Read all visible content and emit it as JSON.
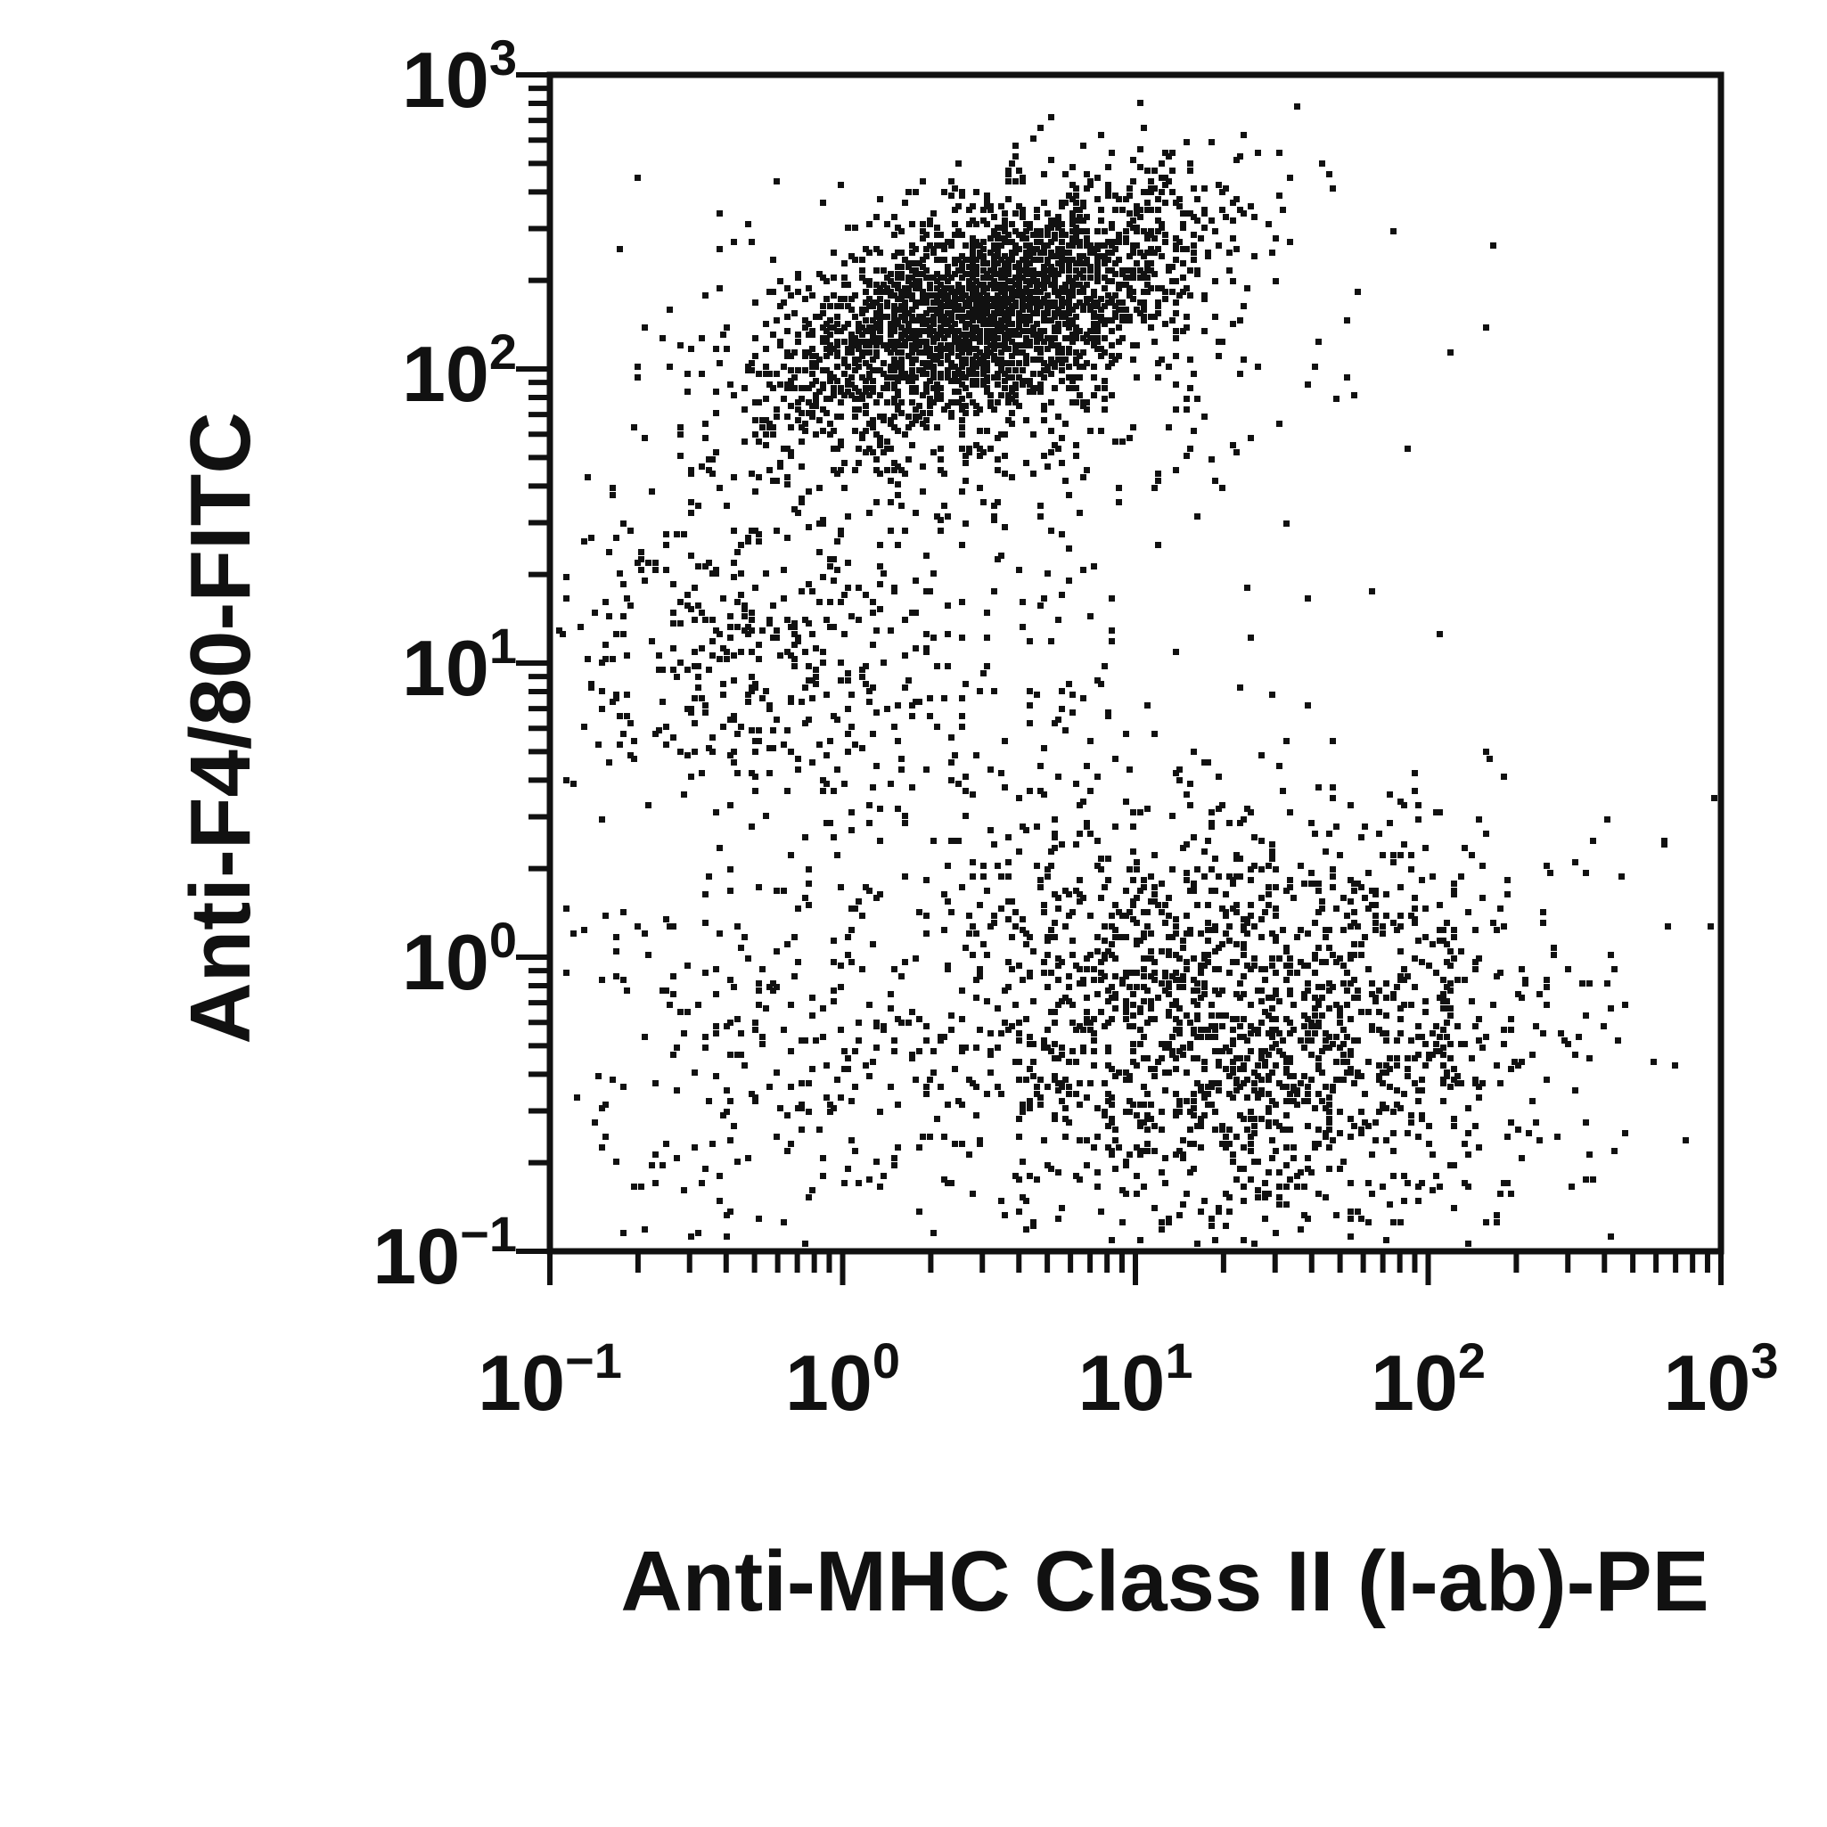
{
  "chart_data": {
    "type": "scatter",
    "title": "",
    "xlabel": "Anti-MHC Class II (I-ab)-PE",
    "ylabel": "Anti-F4/80-FITC",
    "x_scale": "log",
    "y_scale": "log",
    "xlim": [
      0.1,
      1000
    ],
    "ylim": [
      0.1,
      1000
    ],
    "grid": false,
    "colors": {
      "points": "#111111",
      "axes": "#111111"
    },
    "x_ticks": [
      {
        "value": 0.1,
        "base": "10",
        "exp": "−1"
      },
      {
        "value": 1,
        "base": "10",
        "exp": "0"
      },
      {
        "value": 10,
        "base": "10",
        "exp": "1"
      },
      {
        "value": 100,
        "base": "10",
        "exp": "2"
      },
      {
        "value": 1000,
        "base": "10",
        "exp": "3"
      }
    ],
    "y_ticks": [
      {
        "value": 0.1,
        "base": "10",
        "exp": "−1"
      },
      {
        "value": 1,
        "base": "10",
        "exp": "0"
      },
      {
        "value": 10,
        "base": "10",
        "exp": "1"
      },
      {
        "value": 100,
        "base": "10",
        "exp": "2"
      },
      {
        "value": 1000,
        "base": "10",
        "exp": "3"
      }
    ],
    "populations": [
      {
        "name": "",
        "center": [
          2.9,
          165
        ],
        "spread": [
          0.34,
          0.2
        ],
        "count": 2200,
        "corr": 0.55
      },
      {
        "name": "",
        "center": [
          3.2,
          120
        ],
        "spread": [
          0.5,
          0.32
        ],
        "count": 600,
        "corr": 0.3
      },
      {
        "name": "",
        "center": [
          22,
          0.6
        ],
        "spread": [
          0.55,
          0.38
        ],
        "count": 1700,
        "corr": 0.0
      },
      {
        "name": "",
        "center": [
          0.45,
          11
        ],
        "spread": [
          0.35,
          0.3
        ],
        "count": 320,
        "corr": 0.0
      },
      {
        "name": "",
        "center": [
          0.55,
          0.45
        ],
        "spread": [
          0.4,
          0.4
        ],
        "count": 260,
        "corr": 0.0
      },
      {
        "name": "",
        "center": [
          2.5,
          8
        ],
        "spread": [
          0.6,
          0.55
        ],
        "count": 260,
        "corr": 0.0
      }
    ],
    "outliers": [
      [
        10.5,
        680
      ],
      [
        6.0,
        500
      ],
      [
        46,
        420
      ],
      [
        165,
        270
      ],
      [
        75,
        300
      ],
      [
        83,
        55
      ],
      [
        155,
        140
      ],
      [
        9.5,
        110
      ],
      [
        23,
        640
      ],
      [
        400,
        3.0
      ],
      [
        0.11,
        1.5
      ],
      [
        0.19,
        5.5
      ],
      [
        108,
        13
      ],
      [
        60,
        1.2
      ],
      [
        230,
        0.6
      ]
    ]
  }
}
